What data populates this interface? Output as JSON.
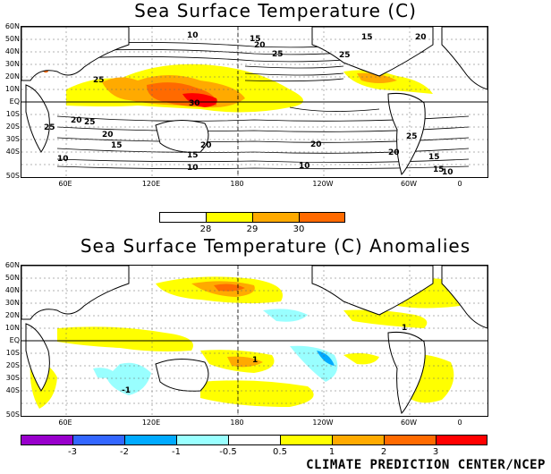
{
  "maps": [
    {
      "title": "Sea Surface Temperature (C)",
      "lat_labels": [
        "60N",
        "50N",
        "40N",
        "30N",
        "20N",
        "10N",
        "EQ",
        "10S",
        "20S",
        "30S",
        "40S",
        "50S"
      ],
      "lon_labels": [
        "60E",
        "120E",
        "180",
        "120W",
        "60W",
        "0"
      ],
      "contour_labels": [
        "10",
        "15",
        "20",
        "25",
        "25",
        "25",
        "20",
        "15",
        "10",
        "10",
        "15",
        "20",
        "25",
        "30",
        "20",
        "25",
        "20",
        "15",
        "10",
        "25",
        "20",
        "15",
        "10",
        "15",
        "20"
      ],
      "colorbar": {
        "labels": [
          "28",
          "29",
          "30"
        ],
        "colors": [
          "#ffffff",
          "#ffff00",
          "#ffaa00",
          "#ff6a00",
          "#ff0000"
        ]
      }
    },
    {
      "title": "Sea Surface Temperature (C) Anomalies",
      "lat_labels": [
        "60N",
        "50N",
        "40N",
        "30N",
        "20N",
        "10N",
        "EQ",
        "10S",
        "20S",
        "30S",
        "40S",
        "50S"
      ],
      "lon_labels": [
        "60E",
        "120E",
        "180",
        "120W",
        "60W",
        "0"
      ],
      "contour_labels": [
        "1",
        "1",
        "-1"
      ],
      "colorbar": {
        "labels": [
          "-3",
          "-2",
          "-1",
          "-0.5",
          "0.5",
          "1",
          "2",
          "3"
        ],
        "colors": [
          "#9900cc",
          "#3366ff",
          "#00aaff",
          "#99ffff",
          "#ffffff",
          "#ffff00",
          "#ffaa00",
          "#ff6a00",
          "#ff0000",
          "#993333"
        ]
      }
    }
  ],
  "credit": "CLIMATE PREDICTION CENTER/NCEP"
}
